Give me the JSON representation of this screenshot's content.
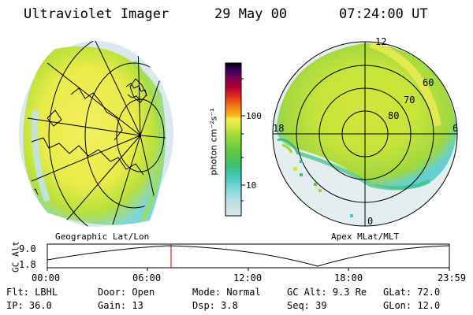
{
  "header": {
    "instrument": "Ultraviolet Imager",
    "date": "29 May 00",
    "time": "07:24:00 UT"
  },
  "left_panel": {
    "caption": "Geographic Lat/Lon"
  },
  "right_panel": {
    "caption": "Apex MLat/MLT",
    "mlt_labels": [
      "12",
      "18",
      "6",
      "0"
    ],
    "lat_labels": [
      "60",
      "70",
      "80"
    ]
  },
  "colorbar": {
    "unit_label": "photon cm⁻²s⁻¹",
    "tick_labels": [
      "100",
      "10"
    ],
    "colors": [
      "#d9e7ec",
      "#b9dfe6",
      "#7fd6d8",
      "#45c9c5",
      "#3dbf7a",
      "#60c840",
      "#9bd83a",
      "#d0e63a",
      "#f2ee55",
      "#f6b01f",
      "#f07a10",
      "#e03020",
      "#b00030",
      "#800050",
      "#400060",
      "#000000"
    ]
  },
  "altitude_plot": {
    "axis_label": "GC Alt",
    "y_ticks": [
      "9.0",
      "1.8"
    ],
    "x_ticks": [
      "00:00",
      "06:00",
      "12:00",
      "18:00",
      "23:59"
    ],
    "current_time_marker": "07:24"
  },
  "status": {
    "flt": {
      "label": "Flt:",
      "value": "LBHL"
    },
    "ip": {
      "label": "IP:",
      "value": "36.0"
    },
    "door": {
      "label": "Door:",
      "value": "Open"
    },
    "gain": {
      "label": "Gain:",
      "value": "13"
    },
    "mode": {
      "label": "Mode:",
      "value": "Normal"
    },
    "dsp": {
      "label": "Dsp:",
      "value": "3.8"
    },
    "gcalt": {
      "label": "GC Alt:",
      "value": "9.3 Re"
    },
    "seq": {
      "label": "Seq:",
      "value": "39"
    },
    "glat": {
      "label": "GLat:",
      "value": "72.0"
    },
    "glon": {
      "label": "GLon:",
      "value": "12.0"
    }
  }
}
